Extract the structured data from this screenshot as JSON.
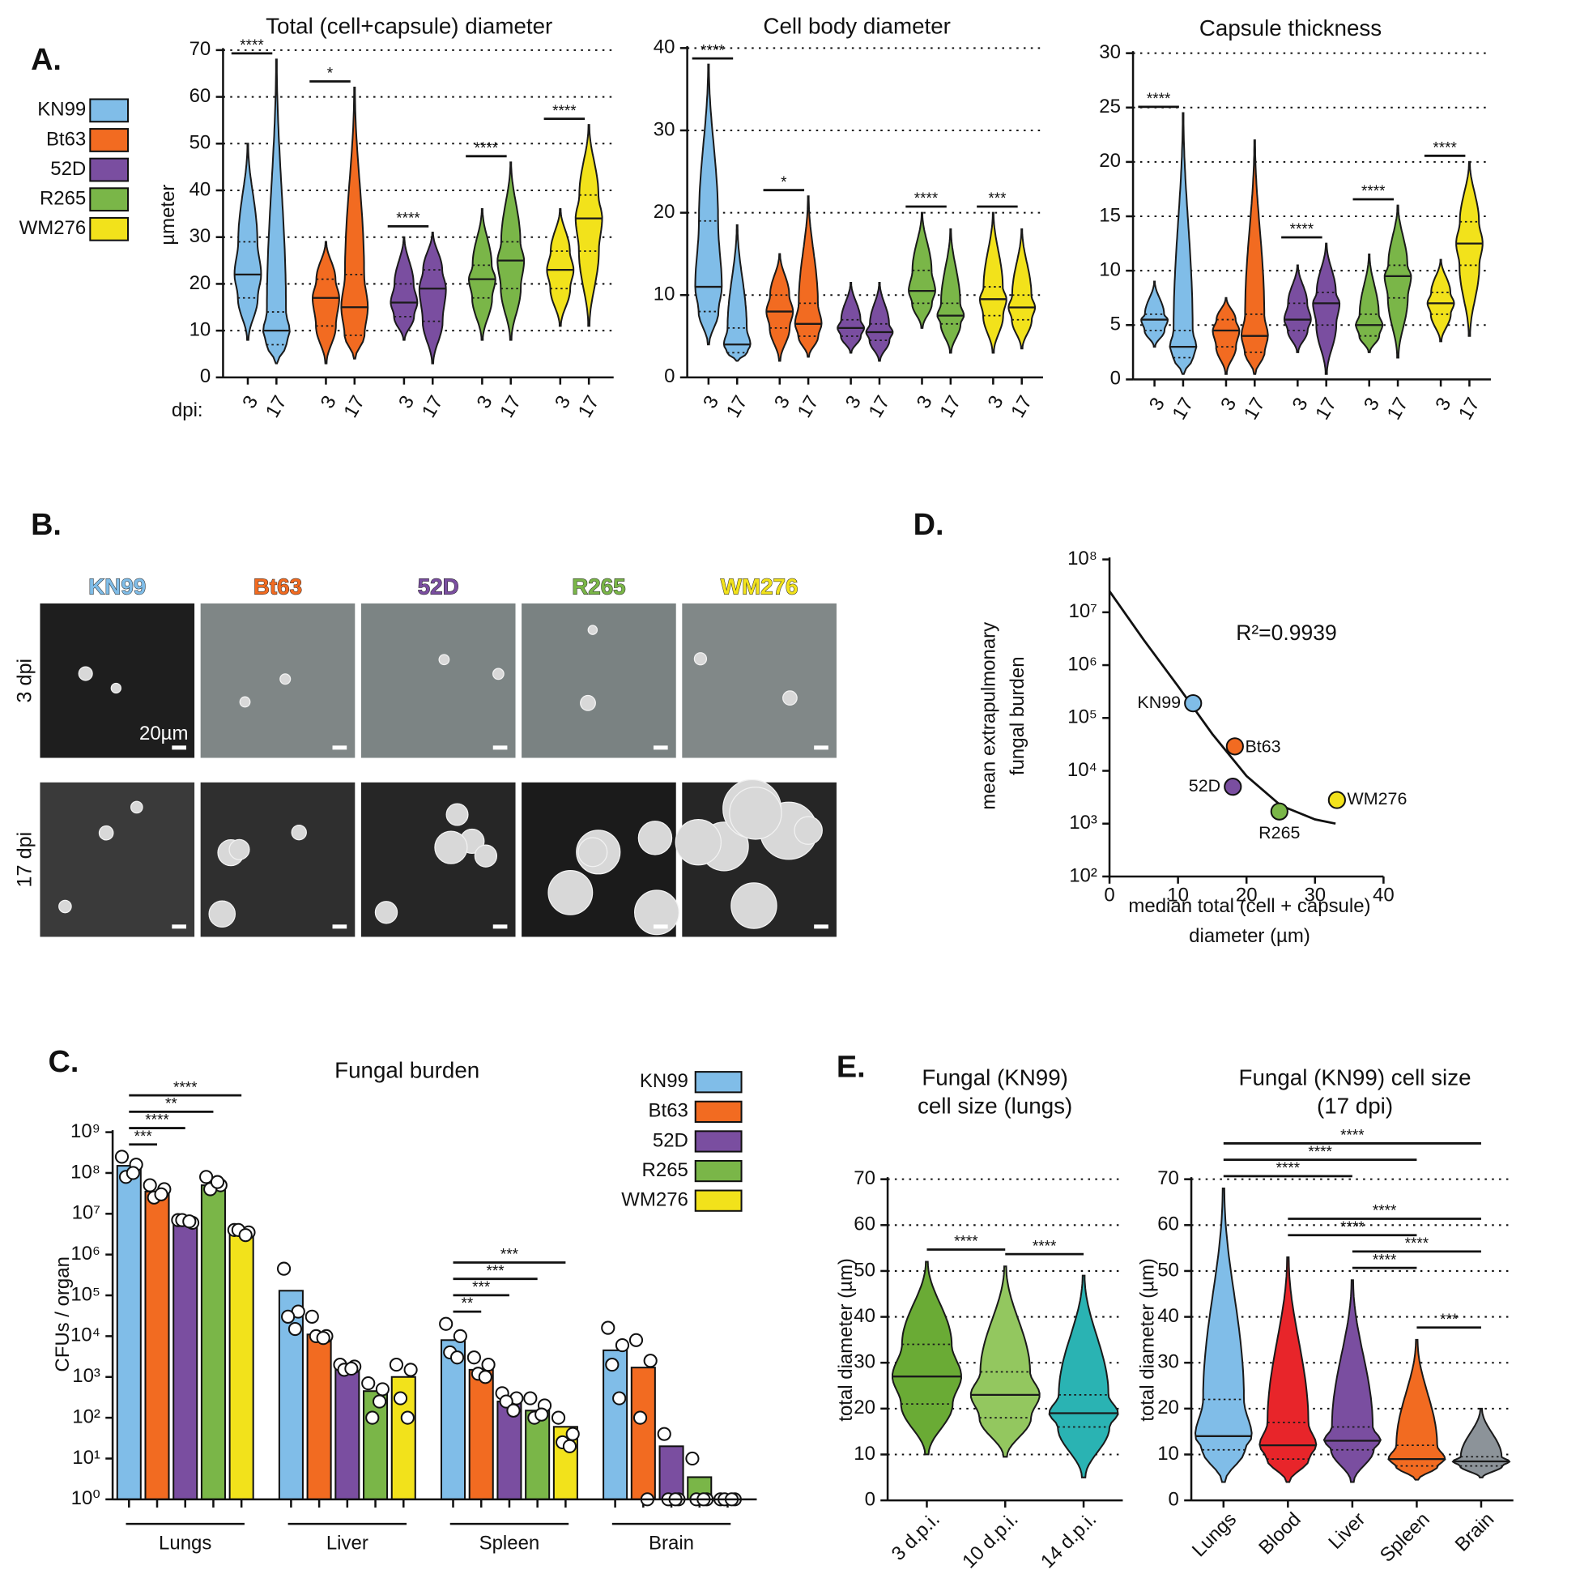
{
  "panels": {
    "a": "A.",
    "b": "B.",
    "c": "C.",
    "d": "D.",
    "e": "E."
  },
  "panel_b": {
    "rows": [
      "3 dpi",
      "17 dpi"
    ],
    "scale_bar": "20µm"
  },
  "chart_data": [
    {
      "type": "violin",
      "title": "Total (cell+capsule) diameter",
      "ylabel": "µmeter",
      "xlabel": "dpi:",
      "ylim": [
        0,
        70
      ],
      "yticks": [
        0,
        10,
        20,
        30,
        40,
        50,
        60,
        70
      ],
      "grid": true,
      "groups": [
        {
          "name": "KN99",
          "color": "#80bde8",
          "sig": "****",
          "violins": [
            {
              "label": "3",
              "min": 8,
              "q1": 17,
              "median": 22,
              "q3": 29,
              "max": 50
            },
            {
              "label": "17",
              "min": 3,
              "q1": 7,
              "median": 10,
              "q3": 14,
              "max": 68
            }
          ]
        },
        {
          "name": "Bt63",
          "color": "#f26b21",
          "sig": "*",
          "violins": [
            {
              "label": "3",
              "min": 3,
              "q1": 11,
              "median": 17,
              "q3": 21,
              "max": 29
            },
            {
              "label": "17",
              "min": 4,
              "q1": 9,
              "median": 15,
              "q3": 22,
              "max": 62
            }
          ]
        },
        {
          "name": "52D",
          "color": "#7a4ea0",
          "sig": "****",
          "violins": [
            {
              "label": "3",
              "min": 8,
              "q1": 13,
              "median": 16,
              "q3": 20,
              "max": 30
            },
            {
              "label": "17",
              "min": 3,
              "q1": 12,
              "median": 19,
              "q3": 23,
              "max": 31
            }
          ]
        },
        {
          "name": "R265",
          "color": "#7ab648",
          "sig": "****",
          "violins": [
            {
              "label": "3",
              "min": 8,
              "q1": 17,
              "median": 21,
              "q3": 24,
              "max": 36
            },
            {
              "label": "17",
              "min": 8,
              "q1": 19,
              "median": 25,
              "q3": 29,
              "max": 46
            }
          ]
        },
        {
          "name": "WM276",
          "color": "#f2e21b",
          "sig": "****",
          "violins": [
            {
              "label": "3",
              "min": 11,
              "q1": 19,
              "median": 23,
              "q3": 27,
              "max": 36
            },
            {
              "label": "17",
              "min": 11,
              "q1": 27,
              "median": 34,
              "q3": 39,
              "max": 54
            }
          ]
        }
      ]
    },
    {
      "type": "violin",
      "title": "Cell body diameter",
      "ylim": [
        0,
        40
      ],
      "yticks": [
        0,
        10,
        20,
        30,
        40
      ],
      "grid": true,
      "groups": [
        {
          "color": "#80bde8",
          "sig": "****",
          "violins": [
            {
              "label": "3",
              "min": 4,
              "q1": 8,
              "median": 11,
              "q3": 19,
              "max": 38
            },
            {
              "label": "17",
              "min": 2,
              "q1": 3,
              "median": 4,
              "q3": 6,
              "max": 18.5
            }
          ]
        },
        {
          "color": "#f26b21",
          "sig": "*",
          "violins": [
            {
              "label": "3",
              "min": 2,
              "q1": 6,
              "median": 8,
              "q3": 10,
              "max": 15
            },
            {
              "label": "17",
              "min": 2.5,
              "q1": 5,
              "median": 6.5,
              "q3": 9,
              "max": 22
            }
          ]
        },
        {
          "color": "#7a4ea0",
          "violins": [
            {
              "label": "3",
              "min": 3,
              "q1": 5,
              "median": 6,
              "q3": 7,
              "max": 11.5
            },
            {
              "label": "17",
              "min": 2,
              "q1": 4.5,
              "median": 5.5,
              "q3": 6.5,
              "max": 11.5
            }
          ]
        },
        {
          "color": "#7ab648",
          "sig": "****",
          "violins": [
            {
              "label": "3",
              "min": 6,
              "q1": 9,
              "median": 10.5,
              "q3": 13,
              "max": 20
            },
            {
              "label": "17",
              "min": 3,
              "q1": 6.5,
              "median": 7.5,
              "q3": 9,
              "max": 18
            }
          ]
        },
        {
          "color": "#f2e21b",
          "sig": "***",
          "violins": [
            {
              "label": "3",
              "min": 3,
              "q1": 7.5,
              "median": 9.5,
              "q3": 11,
              "max": 20
            },
            {
              "label": "17",
              "min": 3.5,
              "q1": 7,
              "median": 8.5,
              "q3": 10,
              "max": 18
            }
          ]
        }
      ]
    },
    {
      "type": "violin",
      "title": "Capsule thickness",
      "ylim": [
        0,
        30
      ],
      "yticks": [
        0,
        5,
        10,
        15,
        20,
        25,
        30
      ],
      "grid": true,
      "groups": [
        {
          "color": "#80bde8",
          "sig": "****",
          "violins": [
            {
              "label": "3",
              "min": 3,
              "q1": 4.5,
              "median": 5.5,
              "q3": 6,
              "max": 9
            },
            {
              "label": "17",
              "min": 0.5,
              "q1": 2,
              "median": 3,
              "q3": 4.5,
              "max": 24.5
            }
          ]
        },
        {
          "color": "#f26b21",
          "violins": [
            {
              "label": "3",
              "min": 0.5,
              "q1": 3,
              "median": 4.5,
              "q3": 5.5,
              "max": 7.5
            },
            {
              "label": "17",
              "min": 0.5,
              "q1": 2.5,
              "median": 4,
              "q3": 6,
              "max": 22
            }
          ]
        },
        {
          "color": "#7a4ea0",
          "sig": "****",
          "violins": [
            {
              "label": "3",
              "min": 2.5,
              "q1": 4.5,
              "median": 5.5,
              "q3": 7,
              "max": 10.5
            },
            {
              "label": "17",
              "min": 0.5,
              "q1": 5,
              "median": 7,
              "q3": 8,
              "max": 12.5
            }
          ]
        },
        {
          "color": "#7ab648",
          "sig": "****",
          "violins": [
            {
              "label": "3",
              "min": 2.5,
              "q1": 4,
              "median": 5,
              "q3": 6,
              "max": 11.5
            },
            {
              "label": "17",
              "min": 2,
              "q1": 7.5,
              "median": 9.5,
              "q3": 10.5,
              "max": 16
            }
          ]
        },
        {
          "color": "#f2e21b",
          "sig": "****",
          "violins": [
            {
              "label": "3",
              "min": 3.5,
              "q1": 6,
              "median": 7,
              "q3": 8,
              "max": 11
            },
            {
              "label": "17",
              "min": 4,
              "q1": 10.5,
              "median": 12.5,
              "q3": 14.5,
              "max": 20
            }
          ]
        }
      ]
    },
    {
      "type": "scatter",
      "ylabel": [
        "mean extrapulmonary",
        "fungal burden"
      ],
      "xlabel": [
        "median total (cell + capsule)",
        "diameter (µm)"
      ],
      "annotation": "R²=0.9939",
      "log": true,
      "xlim": [
        0,
        40
      ],
      "xticks": [
        0,
        10,
        20,
        30,
        40
      ],
      "ylim": [
        100,
        100000000.0
      ],
      "yticks": [
        {
          "value": 100,
          "label": "10²"
        },
        {
          "value": 1000,
          "label": "10³"
        },
        {
          "value": 10000,
          "label": "10⁴"
        },
        {
          "value": 100000,
          "label": "10⁵"
        },
        {
          "value": 1000000,
          "label": "10⁶"
        },
        {
          "value": 10000000,
          "label": "10⁷"
        },
        {
          "value": 100000000,
          "label": "10⁸"
        }
      ],
      "points": [
        {
          "name": "KN99",
          "color": "#80bde8",
          "x": 12.2,
          "y": 190000
        },
        {
          "name": "Bt63",
          "color": "#f26b21",
          "x": 18.3,
          "y": 29000
        },
        {
          "name": "52D",
          "color": "#7a4ea0",
          "x": 18,
          "y": 5000
        },
        {
          "name": "R265",
          "color": "#7ab648",
          "x": 24.8,
          "y": 1700
        },
        {
          "name": "WM276",
          "color": "#f2e21b",
          "x": 33.2,
          "y": 2800
        }
      ],
      "fit": {
        "x": [
          0,
          5,
          10,
          15,
          20,
          25,
          30,
          33
        ],
        "y": [
          25000000,
          3000000,
          400000,
          50000,
          8000,
          2200,
          1200,
          1000
        ]
      }
    },
    {
      "type": "bar",
      "title": "Fungal burden",
      "ylabel": "CFUs / organ",
      "log": true,
      "ylim": [
        1,
        1000000000.0
      ],
      "yticks": [
        {
          "value": 1,
          "label": "10⁰"
        },
        {
          "value": 10,
          "label": "10¹"
        },
        {
          "value": 100,
          "label": "10²"
        },
        {
          "value": 1000,
          "label": "10³"
        },
        {
          "value": 10000,
          "label": "10⁴"
        },
        {
          "value": 100000,
          "label": "10⁵"
        },
        {
          "value": 1000000,
          "label": "10⁶"
        },
        {
          "value": 10000000,
          "label": "10⁷"
        },
        {
          "value": 100000000,
          "label": "10⁸"
        },
        {
          "value": 1000000000,
          "label": "10⁹"
        }
      ],
      "categories": [
        "Lungs",
        "Liver",
        "Spleen",
        "Brain"
      ],
      "series": [
        {
          "name": "KN99",
          "color": "#80bde8",
          "values": [
            150000000,
            130000,
            8000,
            4500
          ],
          "points": [
            [
              250000000,
              160000000,
              80000000,
              100000000
            ],
            [
              450000,
              40000,
              30000,
              15000
            ],
            [
              20000,
              10000,
              4000,
              3000
            ],
            [
              16000,
              6000,
              2000,
              300
            ]
          ]
        },
        {
          "name": "Bt63",
          "color": "#f26b21",
          "values": [
            35000000,
            11000,
            1500,
            1700
          ],
          "points": [
            [
              50000000,
              40000000,
              25000000,
              30000000
            ],
            [
              30000,
              10000,
              10000,
              9000
            ],
            [
              3000,
              2000,
              1200,
              1000
            ],
            [
              8000,
              2500,
              100,
              1
            ]
          ]
        },
        {
          "name": "52D",
          "color": "#7a4ea0",
          "values": [
            7000000,
            1800,
            250,
            20
          ],
          "points": [
            [
              7000000,
              6000000,
              7000000,
              6500000
            ],
            [
              2000,
              1800,
              1500,
              1600
            ],
            [
              400,
              300,
              250,
              150
            ],
            [
              40,
              1,
              1,
              1
            ]
          ]
        },
        {
          "name": "R265",
          "color": "#7ab648",
          "values": [
            50000000,
            450,
            150,
            3.5
          ],
          "points": [
            [
              80000000,
              50000000,
              40000000,
              60000000
            ],
            [
              700,
              500,
              100,
              250
            ],
            [
              300,
              200,
              100,
              120
            ],
            [
              10,
              1,
              1,
              1
            ]
          ]
        },
        {
          "name": "WM276",
          "color": "#f2e21b",
          "values": [
            4000000,
            1000,
            60,
            1
          ],
          "points": [
            [
              4000000,
              3500000,
              4000000,
              3000000
            ],
            [
              2000,
              1500,
              300,
              100
            ],
            [
              100,
              40,
              25,
              20
            ],
            [
              1,
              1,
              1,
              1
            ]
          ]
        }
      ],
      "comparisons": [
        {
          "category": 0,
          "from": 0,
          "to": 1,
          "label": "***"
        },
        {
          "category": 0,
          "from": 0,
          "to": 2,
          "label": "****"
        },
        {
          "category": 0,
          "from": 0,
          "to": 3,
          "label": "**"
        },
        {
          "category": 0,
          "from": 0,
          "to": 4,
          "label": "****"
        },
        {
          "category": 2,
          "from": 0,
          "to": 1,
          "label": "**"
        },
        {
          "category": 2,
          "from": 0,
          "to": 2,
          "label": "***"
        },
        {
          "category": 2,
          "from": 0,
          "to": 3,
          "label": "***"
        },
        {
          "category": 2,
          "from": 0,
          "to": 4,
          "label": "***"
        }
      ]
    },
    {
      "type": "violin",
      "title": [
        "Fungal (KN99)",
        "cell size (lungs)"
      ],
      "ylabel": "total diameter (µm)",
      "ylim": [
        0,
        70
      ],
      "yticks": [
        0,
        10,
        20,
        30,
        40,
        50,
        60,
        70
      ],
      "grid": true,
      "categories": [
        "3 d.p.i.",
        "10 d.p.i.",
        "14 d.p.i."
      ],
      "colors": [
        "#6aab35",
        "#93c75f",
        "#2ab3b3"
      ],
      "violins": [
        {
          "min": 10,
          "q1": 21,
          "median": 27,
          "q3": 34,
          "max": 52
        },
        {
          "min": 9.5,
          "q1": 18,
          "median": 23,
          "q3": 28,
          "max": 51
        },
        {
          "min": 5,
          "q1": 16,
          "median": 19,
          "q3": 23,
          "max": 49
        }
      ],
      "comparisons": [
        {
          "from": 0,
          "to": 1,
          "label": "****"
        },
        {
          "from": 1,
          "to": 2,
          "label": "****"
        }
      ]
    },
    {
      "type": "violin",
      "title": [
        "Fungal (KN99) cell size",
        "(17 dpi)"
      ],
      "ylabel": "total diameter (µm)",
      "ylim": [
        0,
        70
      ],
      "yticks": [
        0,
        10,
        20,
        30,
        40,
        50,
        60,
        70
      ],
      "grid": true,
      "categories": [
        "Lungs",
        "Blood",
        "Liver",
        "Spleen",
        "Brain"
      ],
      "colors": [
        "#80bde8",
        "#e8252a",
        "#7a4ea0",
        "#f26b21",
        "#8c9399"
      ],
      "violins": [
        {
          "min": 4,
          "q1": 11,
          "median": 14,
          "q3": 22,
          "max": 68
        },
        {
          "min": 4,
          "q1": 9,
          "median": 12,
          "q3": 17,
          "max": 53
        },
        {
          "min": 4,
          "q1": 11,
          "median": 13,
          "q3": 16,
          "max": 48
        },
        {
          "min": 4.5,
          "q1": 7.5,
          "median": 9,
          "q3": 12,
          "max": 35
        },
        {
          "min": 5,
          "q1": 7.5,
          "median": 8.5,
          "q3": 9.5,
          "max": 20
        }
      ],
      "comparisons": [
        {
          "from": 3,
          "to": 4,
          "label": "***"
        },
        {
          "from": 2,
          "to": 3,
          "label": "****"
        },
        {
          "from": 2,
          "to": 4,
          "label": "****"
        },
        {
          "from": 1,
          "to": 3,
          "label": "****"
        },
        {
          "from": 1,
          "to": 4,
          "label": "****"
        },
        {
          "from": 0,
          "to": 2,
          "label": "****"
        },
        {
          "from": 0,
          "to": 3,
          "label": "****"
        },
        {
          "from": 0,
          "to": 4,
          "label": "****"
        }
      ]
    }
  ]
}
